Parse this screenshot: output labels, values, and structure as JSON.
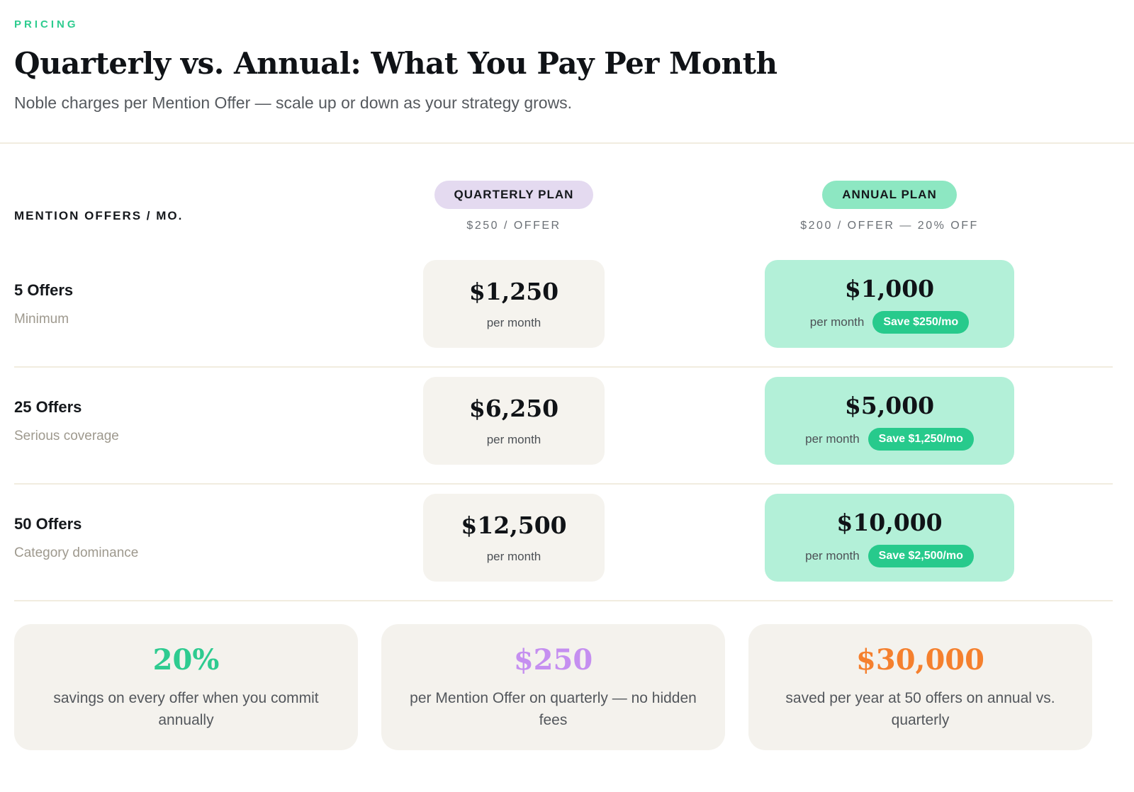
{
  "header": {
    "eyebrow": "PRICING",
    "title": "Quarterly vs. Annual: What You Pay Per Month",
    "subtitle": "Noble charges per Mention Offer — scale up or down as your strategy grows."
  },
  "table": {
    "axis_label": "MENTION OFFERS / MO.",
    "quarterly": {
      "badge": "QUARTERLY PLAN",
      "rate": "$250 / OFFER"
    },
    "annual": {
      "badge": "ANNUAL PLAN",
      "rate": "$200 / OFFER — 20% OFF"
    },
    "rows": [
      {
        "offers": "5 Offers",
        "descriptor": "Minimum",
        "quarterly": {
          "price": "$1,250",
          "period": "per month"
        },
        "annual": {
          "price": "$1,000",
          "period": "per month",
          "save": "Save $250/mo"
        }
      },
      {
        "offers": "25 Offers",
        "descriptor": "Serious coverage",
        "quarterly": {
          "price": "$6,250",
          "period": "per month"
        },
        "annual": {
          "price": "$5,000",
          "period": "per month",
          "save": "Save $1,250/mo"
        }
      },
      {
        "offers": "50 Offers",
        "descriptor": "Category dominance",
        "quarterly": {
          "price": "$12,500",
          "period": "per month"
        },
        "annual": {
          "price": "$10,000",
          "period": "per month",
          "save": "Save $2,500/mo"
        }
      }
    ]
  },
  "stats": [
    {
      "value": "20%",
      "description": "savings on every offer when you commit annually",
      "color": "#2ecb90"
    },
    {
      "value": "$250",
      "description": "per Mention Offer on quarterly — no hidden fees",
      "color": "#c58ff0"
    },
    {
      "value": "$30,000",
      "description": "saved per year at 50 offers on annual vs. quarterly",
      "color": "#f5802e"
    }
  ],
  "colors": {
    "accent_green": "#2ecc8f",
    "lavender_pill": "#e4daf0",
    "mint_pill": "#8de7c2",
    "mint_card": "#b3f0d8",
    "save_badge_green": "#27ca8c",
    "neutral_card": "#f4f2ed",
    "divider": "#f1ecdf"
  }
}
